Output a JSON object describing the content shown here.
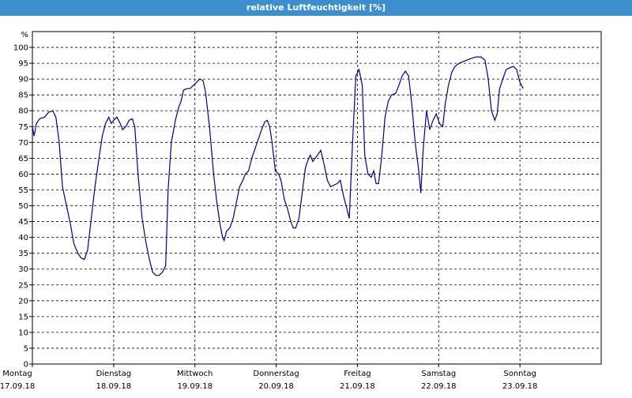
{
  "window": {
    "title": "relative Luftfeuchtigkeit [%]"
  },
  "chart_data": {
    "type": "line",
    "title": "relative Luftfeuchtigkeit [%]",
    "ylabel": "%",
    "xlabel": "",
    "ylim": [
      0,
      105
    ],
    "yticks": [
      0,
      5,
      10,
      15,
      20,
      25,
      30,
      35,
      40,
      45,
      50,
      55,
      60,
      65,
      70,
      75,
      80,
      85,
      90,
      95,
      100
    ],
    "grid": true,
    "legend": "none",
    "line_color": "#00008b",
    "x_unit": "days since 17.09.18 00:00",
    "xlim": [
      0,
      7.0
    ],
    "x_day_labels": [
      {
        "day": "Montag",
        "date": "17.09.18"
      },
      {
        "day": "Dienstag",
        "date": "18.09.18"
      },
      {
        "day": "Mittwoch",
        "date": "19.09.18"
      },
      {
        "day": "Donnerstag",
        "date": "20.09.18"
      },
      {
        "day": "Freitag",
        "date": "21.09.18"
      },
      {
        "day": "Samstag",
        "date": "22.09.18"
      },
      {
        "day": "Sonntag",
        "date": "23.09.18"
      }
    ],
    "series": [
      {
        "name": "",
        "points": [
          [
            0.0,
            75
          ],
          [
            0.02,
            72
          ],
          [
            0.05,
            76
          ],
          [
            0.09,
            77.5
          ],
          [
            0.15,
            78
          ],
          [
            0.2,
            79.5
          ],
          [
            0.25,
            80
          ],
          [
            0.29,
            78
          ],
          [
            0.33,
            70
          ],
          [
            0.37,
            56
          ],
          [
            0.42,
            50
          ],
          [
            0.47,
            44
          ],
          [
            0.51,
            38
          ],
          [
            0.56,
            35
          ],
          [
            0.6,
            33.5
          ],
          [
            0.64,
            33
          ],
          [
            0.68,
            36
          ],
          [
            0.72,
            45
          ],
          [
            0.77,
            56
          ],
          [
            0.82,
            65
          ],
          [
            0.86,
            72
          ],
          [
            0.9,
            76
          ],
          [
            0.94,
            78
          ],
          [
            0.97,
            76
          ],
          [
            1.0,
            77
          ],
          [
            1.04,
            78
          ],
          [
            1.08,
            76
          ],
          [
            1.11,
            74
          ],
          [
            1.15,
            75
          ],
          [
            1.19,
            77
          ],
          [
            1.23,
            77.5
          ],
          [
            1.26,
            75
          ],
          [
            1.3,
            60
          ],
          [
            1.35,
            46
          ],
          [
            1.4,
            38
          ],
          [
            1.44,
            33
          ],
          [
            1.48,
            29
          ],
          [
            1.52,
            28
          ],
          [
            1.56,
            28
          ],
          [
            1.6,
            29
          ],
          [
            1.64,
            31
          ],
          [
            1.67,
            55
          ],
          [
            1.71,
            70
          ],
          [
            1.76,
            77
          ],
          [
            1.8,
            81
          ],
          [
            1.83,
            83
          ],
          [
            1.86,
            86.5
          ],
          [
            1.9,
            87
          ],
          [
            1.94,
            87
          ],
          [
            1.98,
            88
          ],
          [
            2.02,
            89
          ],
          [
            2.06,
            90
          ],
          [
            2.1,
            89.5
          ],
          [
            2.13,
            86
          ],
          [
            2.18,
            75
          ],
          [
            2.23,
            60
          ],
          [
            2.27,
            51
          ],
          [
            2.31,
            44
          ],
          [
            2.34,
            40
          ],
          [
            2.36,
            39
          ],
          [
            2.39,
            42
          ],
          [
            2.43,
            43
          ],
          [
            2.47,
            46
          ],
          [
            2.51,
            51
          ],
          [
            2.55,
            56
          ],
          [
            2.59,
            58
          ],
          [
            2.62,
            60
          ],
          [
            2.66,
            61
          ],
          [
            2.7,
            65
          ],
          [
            2.74,
            68
          ],
          [
            2.78,
            71
          ],
          [
            2.82,
            74
          ],
          [
            2.86,
            76.5
          ],
          [
            2.89,
            77
          ],
          [
            2.92,
            75
          ],
          [
            2.95,
            70
          ],
          [
            2.99,
            61
          ],
          [
            3.03,
            60
          ],
          [
            3.06,
            58
          ],
          [
            3.1,
            52
          ],
          [
            3.14,
            49
          ],
          [
            3.18,
            45
          ],
          [
            3.21,
            43
          ],
          [
            3.24,
            43
          ],
          [
            3.28,
            46
          ],
          [
            3.32,
            54
          ],
          [
            3.36,
            62
          ],
          [
            3.4,
            65
          ],
          [
            3.42,
            66
          ],
          [
            3.45,
            64
          ],
          [
            3.48,
            65
          ],
          [
            3.51,
            66
          ],
          [
            3.55,
            67.5
          ],
          [
            3.59,
            63
          ],
          [
            3.63,
            58
          ],
          [
            3.67,
            56
          ],
          [
            3.71,
            56.5
          ],
          [
            3.75,
            57
          ],
          [
            3.79,
            58
          ],
          [
            3.83,
            53
          ],
          [
            3.87,
            49
          ],
          [
            3.9,
            46
          ],
          [
            3.94,
            70
          ],
          [
            3.98,
            91
          ],
          [
            4.02,
            93
          ],
          [
            4.06,
            88
          ],
          [
            4.09,
            66
          ],
          [
            4.13,
            60
          ],
          [
            4.17,
            59
          ],
          [
            4.2,
            61
          ],
          [
            4.23,
            57
          ],
          [
            4.26,
            57
          ],
          [
            4.3,
            66
          ],
          [
            4.34,
            78
          ],
          [
            4.38,
            83
          ],
          [
            4.42,
            85
          ],
          [
            4.47,
            85.5
          ],
          [
            4.51,
            88
          ],
          [
            4.55,
            91
          ],
          [
            4.59,
            92.5
          ],
          [
            4.63,
            91
          ],
          [
            4.67,
            82
          ],
          [
            4.71,
            70
          ],
          [
            4.75,
            62
          ],
          [
            4.78,
            54
          ],
          [
            4.81,
            68
          ],
          [
            4.85,
            80
          ],
          [
            4.89,
            74
          ],
          [
            4.93,
            77
          ],
          [
            4.97,
            79
          ],
          [
            5.01,
            76
          ],
          [
            5.05,
            75
          ],
          [
            5.08,
            82
          ],
          [
            5.12,
            88
          ],
          [
            5.16,
            92
          ],
          [
            5.2,
            94
          ],
          [
            5.25,
            95
          ],
          [
            5.3,
            95.5
          ],
          [
            5.35,
            96
          ],
          [
            5.4,
            96.5
          ],
          [
            5.46,
            97
          ],
          [
            5.52,
            97
          ],
          [
            5.57,
            96
          ],
          [
            5.61,
            90
          ],
          [
            5.65,
            80
          ],
          [
            5.69,
            77
          ],
          [
            5.72,
            79
          ],
          [
            5.75,
            87
          ],
          [
            5.79,
            90
          ],
          [
            5.83,
            93
          ],
          [
            5.87,
            93.5
          ],
          [
            5.92,
            94
          ],
          [
            5.96,
            93
          ],
          [
            6.0,
            89
          ],
          [
            6.04,
            87
          ]
        ]
      }
    ]
  }
}
